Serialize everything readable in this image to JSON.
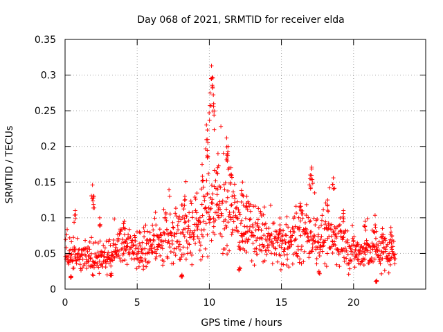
{
  "chart_data": {
    "type": "scatter",
    "title": "Day 068 of 2021, SRMTID for receiver elda",
    "xlabel": "GPS time / hours",
    "ylabel": "SRMTID / TECUs",
    "xlim": [
      0,
      25
    ],
    "ylim": [
      0,
      0.35
    ],
    "grid": true,
    "marker": "+",
    "marker_color": "#ff0000",
    "x_ticks": [
      0,
      5,
      10,
      15,
      20
    ],
    "x_tick_labels": [
      "0",
      "5",
      "10",
      "15",
      "20"
    ],
    "y_ticks": [
      0,
      0.05,
      0.1,
      0.15,
      0.2,
      0.25,
      0.3,
      0.35
    ],
    "y_tick_labels": [
      "0",
      "0.05",
      "0.1",
      "0.15",
      "0.2",
      "0.25",
      "0.3",
      "0.35"
    ],
    "series": [
      {
        "name": "SRMTID",
        "baseline": [
          [
            0.0,
            0.05
          ],
          [
            0.5,
            0.048
          ],
          [
            1.0,
            0.045
          ],
          [
            1.5,
            0.044
          ],
          [
            2.0,
            0.046
          ],
          [
            2.5,
            0.045
          ],
          [
            3.0,
            0.048
          ],
          [
            3.5,
            0.055
          ],
          [
            4.0,
            0.06
          ],
          [
            4.5,
            0.058
          ],
          [
            5.0,
            0.052
          ],
          [
            5.5,
            0.05
          ],
          [
            6.0,
            0.058
          ],
          [
            6.5,
            0.065
          ],
          [
            7.0,
            0.072
          ],
          [
            7.5,
            0.075
          ],
          [
            8.0,
            0.078
          ],
          [
            8.5,
            0.082
          ],
          [
            9.0,
            0.085
          ],
          [
            9.5,
            0.095
          ],
          [
            10.0,
            0.11
          ],
          [
            10.5,
            0.12
          ],
          [
            11.0,
            0.115
          ],
          [
            11.5,
            0.1
          ],
          [
            12.0,
            0.09
          ],
          [
            12.5,
            0.085
          ],
          [
            13.0,
            0.08
          ],
          [
            13.5,
            0.075
          ],
          [
            14.0,
            0.068
          ],
          [
            14.5,
            0.06
          ],
          [
            15.0,
            0.062
          ],
          [
            15.5,
            0.065
          ],
          [
            16.0,
            0.07
          ],
          [
            16.5,
            0.075
          ],
          [
            17.0,
            0.08
          ],
          [
            17.5,
            0.072
          ],
          [
            18.0,
            0.068
          ],
          [
            18.5,
            0.07
          ],
          [
            19.0,
            0.068
          ],
          [
            19.5,
            0.06
          ],
          [
            20.0,
            0.052
          ],
          [
            20.5,
            0.05
          ],
          [
            21.0,
            0.052
          ],
          [
            21.5,
            0.055
          ],
          [
            22.0,
            0.052
          ],
          [
            22.5,
            0.05
          ],
          [
            22.9,
            0.048
          ]
        ],
        "peaks": [
          [
            0.7,
            0.11
          ],
          [
            1.9,
            0.146
          ],
          [
            2.0,
            0.13
          ],
          [
            2.4,
            0.1
          ],
          [
            4.1,
            0.095
          ],
          [
            8.3,
            0.13
          ],
          [
            9.5,
            0.175
          ],
          [
            9.8,
            0.23
          ],
          [
            9.9,
            0.205
          ],
          [
            10.05,
            0.275
          ],
          [
            10.15,
            0.313
          ],
          [
            10.25,
            0.296
          ],
          [
            10.3,
            0.26
          ],
          [
            10.6,
            0.19
          ],
          [
            11.2,
            0.212
          ],
          [
            11.3,
            0.2
          ],
          [
            11.5,
            0.17
          ],
          [
            12.3,
            0.15
          ],
          [
            12.6,
            0.13
          ],
          [
            14.9,
            0.09
          ],
          [
            16.3,
            0.12
          ],
          [
            17.0,
            0.16
          ],
          [
            17.1,
            0.171
          ],
          [
            18.2,
            0.125
          ],
          [
            18.6,
            0.156
          ],
          [
            19.3,
            0.11
          ],
          [
            20.8,
            0.095
          ],
          [
            21.5,
            0.09
          ],
          [
            22.0,
            0.085
          ],
          [
            22.6,
            0.08
          ],
          [
            3.2,
            0.022
          ],
          [
            8.1,
            0.02
          ],
          [
            12.1,
            0.03
          ],
          [
            21.6,
            0.012
          ],
          [
            17.6,
            0.025
          ],
          [
            0.4,
            0.018
          ]
        ],
        "sampling_interval_hours": 0.02,
        "max_time_hours": 22.9
      }
    ]
  }
}
